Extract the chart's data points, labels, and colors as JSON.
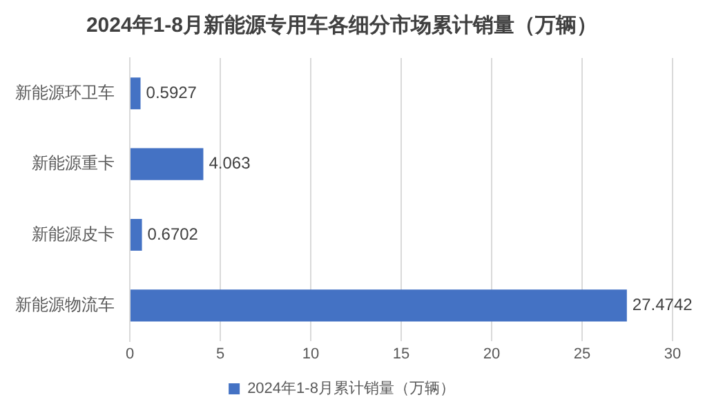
{
  "chart_data": {
    "type": "bar",
    "orientation": "horizontal",
    "title": "2024年1-8月新能源专用车各细分市场累计销量（万辆）",
    "categories": [
      "新能源环卫车",
      "新能源重卡",
      "新能源皮卡",
      "新能源物流车"
    ],
    "series": [
      {
        "name": "2024年1-8月累计销量（万辆）",
        "color": "#4472c4",
        "values": [
          0.5927,
          4.063,
          0.6702,
          27.4742
        ]
      }
    ],
    "xlim": [
      0,
      30
    ],
    "xticks": [
      0,
      5,
      10,
      15,
      20,
      25,
      30
    ],
    "grid": "x",
    "legend": "bottom",
    "data_labels": true
  }
}
